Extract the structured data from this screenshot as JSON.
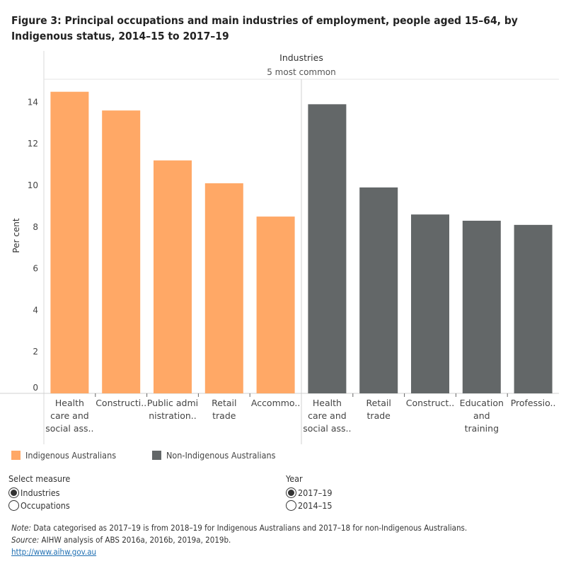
{
  "title": "Figure 3: Principal occupations and main industries of employment, people aged 15–64, by Indigenous status, 2014–15 to 2017–19",
  "chart_data": {
    "type": "bar",
    "header": "Industries",
    "subheader": "5 most common",
    "ylabel": "Per cent",
    "ylim": [
      0,
      14.8
    ],
    "yticks": [
      0,
      2,
      4,
      6,
      8,
      10,
      12,
      14
    ],
    "grid": false,
    "legend_position": "bottom-left",
    "panels": [
      {
        "name": "Indigenous Australians",
        "color": "#FFA866",
        "categories": [
          [
            "Health",
            "care and",
            "social ass.."
          ],
          [
            "Constructi.."
          ],
          [
            "Public admi",
            "nistration.."
          ],
          [
            "Retail",
            "trade"
          ],
          [
            "Accommo.."
          ]
        ],
        "values": [
          14.5,
          13.6,
          11.2,
          10.1,
          8.5
        ]
      },
      {
        "name": "Non-Indigenous Australians",
        "color": "#636768",
        "categories": [
          [
            "Health",
            "care and",
            "social ass.."
          ],
          [
            "Retail",
            "trade"
          ],
          [
            "Construct.."
          ],
          [
            "Education",
            "and",
            "training"
          ],
          [
            "Professio.."
          ]
        ],
        "values": [
          13.9,
          9.9,
          8.6,
          8.3,
          8.1
        ]
      }
    ]
  },
  "legend": [
    "Indigenous Australians",
    "Non-Indigenous Australians"
  ],
  "controls": {
    "measure": {
      "label": "Select measure",
      "options": [
        "Industries",
        "Occupations"
      ],
      "selected": "Industries"
    },
    "year": {
      "label": "Year",
      "options": [
        "2017–19",
        "2014–15"
      ],
      "selected": "2017–19"
    }
  },
  "notes": {
    "note_label": "Note:",
    "note_text": " Data categorised as 2017–19 is from 2018–19 for Indigenous Australians and 2017–18 for non-Indigenous Australians.",
    "source_label": "Source:",
    "source_text": " AIHW analysis of ABS 2016a, 2016b, 2019a, 2019b.",
    "link": "http://www.aihw.gov.au"
  }
}
